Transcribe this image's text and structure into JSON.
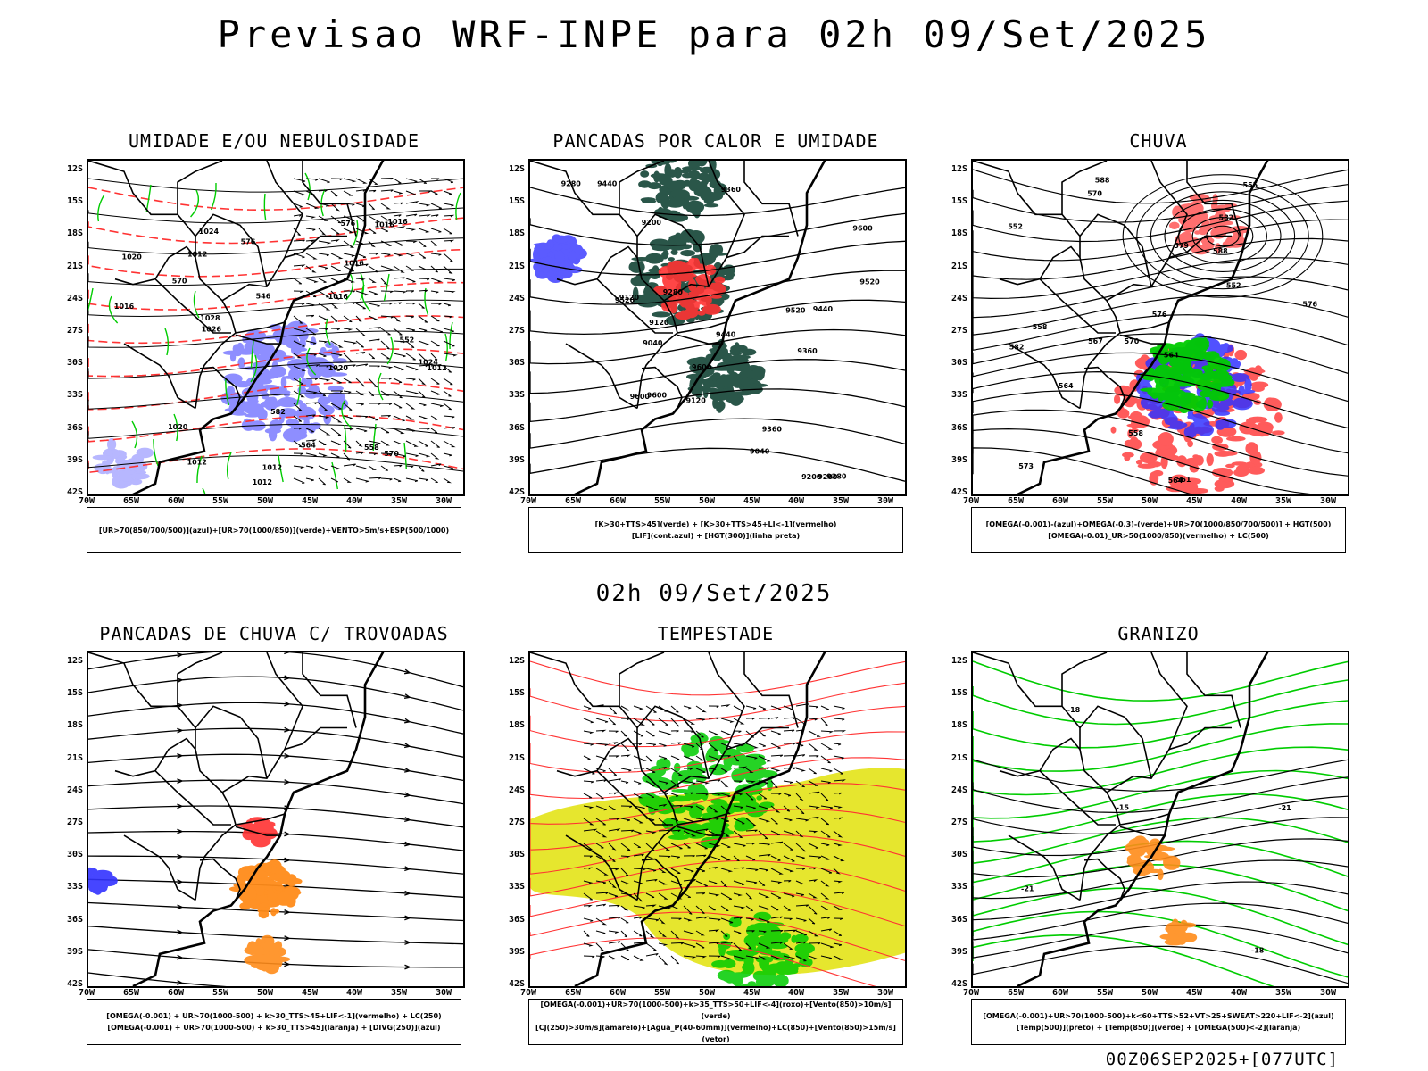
{
  "title": "Previsao WRF-INPE  para 02h 09/Set/2025",
  "middle_title": "02h 09/Set/2025",
  "footer": "00Z06SEP2025+[077UTC]",
  "lat_ticks": [
    "12S",
    "15S",
    "18S",
    "21S",
    "24S",
    "27S",
    "30S",
    "33S",
    "36S",
    "39S",
    "42S"
  ],
  "lon_ticks": [
    "70W",
    "65W",
    "60W",
    "55W",
    "50W",
    "45W",
    "40W",
    "35W",
    "30W"
  ],
  "colors": {
    "blue": "#3333ff",
    "green": "#00cc00",
    "red": "#ff3333",
    "orange": "#ff8c1a",
    "yellow": "#e6e62e",
    "dark_green": "#1f4d40"
  },
  "panels": [
    {
      "title": "UMIDADE E/OU NEBULOSIDADE",
      "legend": [
        "[UR>70(850/700/500)](azul)+[UR>70(1000/850)](verde)+VENTO>5m/s+ESP(500/1000)"
      ],
      "labels": [
        "1020",
        "1012",
        "1016",
        "1012",
        "1016",
        "1012",
        "1020",
        "1026",
        "1016",
        "1012",
        "1024",
        "1024",
        "1016",
        "1020",
        "1016",
        "1012",
        "1028",
        "576",
        "570",
        "564",
        "558",
        "552",
        "546",
        "582",
        "576",
        "570"
      ]
    },
    {
      "title": "PANCADAS POR CALOR E UMIDADE",
      "legend": [
        "[K>30+TTS>45](verde) + [K>30+TTS>45+LI<-1](vermelho)",
        "[LIF](cont.azul) + [HGT(300)](linha preta)"
      ],
      "labels": [
        "9600",
        "9520",
        "9440",
        "9360",
        "9280",
        "9200",
        "9120",
        "9040",
        "9600",
        "9520",
        "9440",
        "9360",
        "9280",
        "9200",
        "9120",
        "9360",
        "9440",
        "9520",
        "9600",
        "9280",
        "9200",
        "9120",
        "9040",
        "9600"
      ]
    },
    {
      "title": "CHUVA",
      "legend": [
        "[OMEGA(-0.001)-(azul)+OMEGA(-0.3)-(verde)+UR>70(1000/850/700/500)] + HGT(500)",
        "[OMEGA(-0.01)_UR>50(1000/850)(vermelho) + LC(500)"
      ],
      "labels": [
        "588",
        "582",
        "576",
        "570",
        "564",
        "558",
        "552",
        "588",
        "582",
        "579",
        "576",
        "573",
        "570",
        "567",
        "564",
        "561",
        "558",
        "555",
        "552",
        "564"
      ]
    },
    {
      "title": "PANCADAS DE CHUVA C/ TROVOADAS",
      "legend": [
        "[OMEGA(-0.001) + UR>70(1000-500) + k>30_TTS>45+LIF<-1](vermelho) + LC(250)",
        "[OMEGA(-0.001) + UR>70(1000-500) + k>30_TTS>45](laranja) + [DIVG(250)](azul)"
      ],
      "labels": []
    },
    {
      "title": "TEMPESTADE",
      "legend": [
        "[OMEGA(-0.001)+UR>70(1000-500)+k>35_TTS>50+LIF<-4](roxo)+[Vento(850)>10m/s](verde)",
        "[CJ(250)>30m/s](amarelo)+[Agua_P(40-60mm)](vermelho)+LC(850)+[Vento(850)>15m/s](vetor)"
      ],
      "labels": []
    },
    {
      "title": "GRANIZO",
      "legend": [
        "[OMEGA(-0.001)+UR>70(1000-500)+k<60+TTS>52+VT>25+SWEAT>220+LIF<-2](azul)",
        "[Temp(500)](preto) + [Temp(850)](verde) + [OMEGA(500)<-2](laranja)"
      ],
      "labels": [
        "-18",
        "-21",
        "-15",
        "-18",
        "-21"
      ]
    }
  ]
}
